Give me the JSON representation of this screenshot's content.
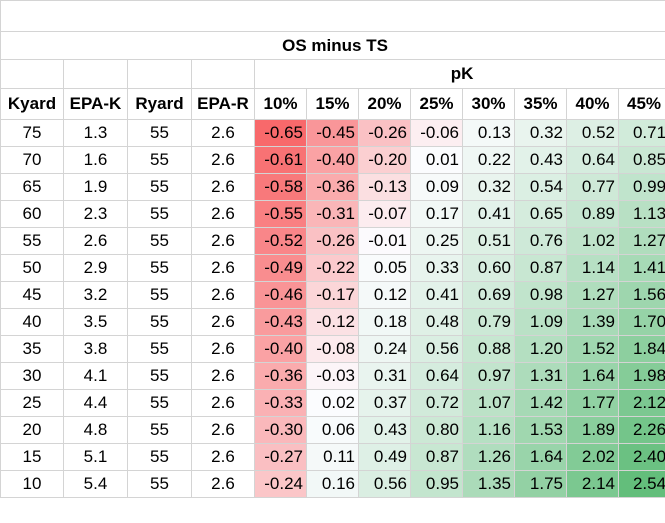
{
  "title": "OS minus TS",
  "group_header": "pK",
  "headers": [
    "Kyard",
    "EPA-K",
    "Ryard",
    "EPA-R",
    "10%",
    "15%",
    "20%",
    "25%",
    "30%",
    "35%",
    "40%",
    "45%"
  ],
  "rows": [
    {
      "kyard": "75",
      "epa_k": "1.3",
      "ryard": "55",
      "epa_r": "2.6",
      "vals": [
        "-0.65",
        "-0.45",
        "-0.26",
        "-0.06",
        "0.13",
        "0.32",
        "0.52",
        "0.71"
      ]
    },
    {
      "kyard": "70",
      "epa_k": "1.6",
      "ryard": "55",
      "epa_r": "2.6",
      "vals": [
        "-0.61",
        "-0.40",
        "-0.20",
        "0.01",
        "0.22",
        "0.43",
        "0.64",
        "0.85"
      ]
    },
    {
      "kyard": "65",
      "epa_k": "1.9",
      "ryard": "55",
      "epa_r": "2.6",
      "vals": [
        "-0.58",
        "-0.36",
        "-0.13",
        "0.09",
        "0.32",
        "0.54",
        "0.77",
        "0.99"
      ]
    },
    {
      "kyard": "60",
      "epa_k": "2.3",
      "ryard": "55",
      "epa_r": "2.6",
      "vals": [
        "-0.55",
        "-0.31",
        "-0.07",
        "0.17",
        "0.41",
        "0.65",
        "0.89",
        "1.13"
      ]
    },
    {
      "kyard": "55",
      "epa_k": "2.6",
      "ryard": "55",
      "epa_r": "2.6",
      "vals": [
        "-0.52",
        "-0.26",
        "-0.01",
        "0.25",
        "0.51",
        "0.76",
        "1.02",
        "1.27"
      ]
    },
    {
      "kyard": "50",
      "epa_k": "2.9",
      "ryard": "55",
      "epa_r": "2.6",
      "vals": [
        "-0.49",
        "-0.22",
        "0.05",
        "0.33",
        "0.60",
        "0.87",
        "1.14",
        "1.41"
      ]
    },
    {
      "kyard": "45",
      "epa_k": "3.2",
      "ryard": "55",
      "epa_r": "2.6",
      "vals": [
        "-0.46",
        "-0.17",
        "0.12",
        "0.41",
        "0.69",
        "0.98",
        "1.27",
        "1.56"
      ]
    },
    {
      "kyard": "40",
      "epa_k": "3.5",
      "ryard": "55",
      "epa_r": "2.6",
      "vals": [
        "-0.43",
        "-0.12",
        "0.18",
        "0.48",
        "0.79",
        "1.09",
        "1.39",
        "1.70"
      ]
    },
    {
      "kyard": "35",
      "epa_k": "3.8",
      "ryard": "55",
      "epa_r": "2.6",
      "vals": [
        "-0.40",
        "-0.08",
        "0.24",
        "0.56",
        "0.88",
        "1.20",
        "1.52",
        "1.84"
      ]
    },
    {
      "kyard": "30",
      "epa_k": "4.1",
      "ryard": "55",
      "epa_r": "2.6",
      "vals": [
        "-0.36",
        "-0.03",
        "0.31",
        "0.64",
        "0.97",
        "1.31",
        "1.64",
        "1.98"
      ]
    },
    {
      "kyard": "25",
      "epa_k": "4.4",
      "ryard": "55",
      "epa_r": "2.6",
      "vals": [
        "-0.33",
        "0.02",
        "0.37",
        "0.72",
        "1.07",
        "1.42",
        "1.77",
        "2.12"
      ]
    },
    {
      "kyard": "20",
      "epa_k": "4.8",
      "ryard": "55",
      "epa_r": "2.6",
      "vals": [
        "-0.30",
        "0.06",
        "0.43",
        "0.80",
        "1.16",
        "1.53",
        "1.89",
        "2.26"
      ]
    },
    {
      "kyard": "15",
      "epa_k": "5.1",
      "ryard": "55",
      "epa_r": "2.6",
      "vals": [
        "-0.27",
        "0.11",
        "0.49",
        "0.87",
        "1.26",
        "1.64",
        "2.02",
        "2.40"
      ]
    },
    {
      "kyard": "10",
      "epa_k": "5.4",
      "ryard": "55",
      "epa_r": "2.6",
      "vals": [
        "-0.24",
        "0.16",
        "0.56",
        "0.95",
        "1.35",
        "1.75",
        "2.14",
        "2.54"
      ]
    }
  ],
  "colors": {
    "negative": "#f8696b",
    "neutral": "#fcfcff",
    "positive": "#63be7b",
    "grid": "#d4d4d4"
  }
}
